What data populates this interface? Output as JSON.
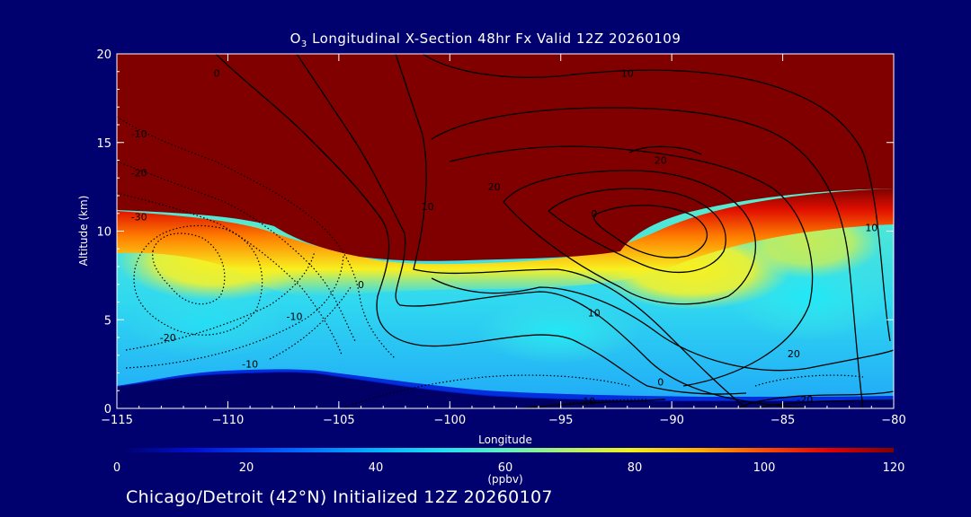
{
  "chart_data": {
    "type": "heatmap",
    "title_prefix": "O",
    "title_subscript": "3",
    "title_suffix": " Longitudinal X-Section 48hr  Fx Valid 12Z 20260109",
    "xlabel": "Longitude",
    "ylabel": "Altitude (km)",
    "xlim": [
      -115,
      -80
    ],
    "ylim": [
      0,
      20
    ],
    "x_ticks": [
      "−115",
      "−110",
      "−105",
      "−100",
      "−95",
      "−90",
      "−85",
      "−80"
    ],
    "y_ticks": [
      "0",
      "5",
      "10",
      "15",
      "20"
    ],
    "colorbar": {
      "min": 0,
      "max": 120,
      "ticks": [
        "0",
        "20",
        "40",
        "60",
        "80",
        "100",
        "120"
      ],
      "unit_label": "(ppbv)"
    },
    "contour_labels": [
      {
        "text": "0",
        "lon": -110.5,
        "alt": 18.9
      },
      {
        "text": "10",
        "lon": -92,
        "alt": 18.9
      },
      {
        "text": "-10",
        "lon": -114,
        "alt": 15.5
      },
      {
        "text": "-20",
        "lon": -114,
        "alt": 13.3
      },
      {
        "text": "-30",
        "lon": -114,
        "alt": 10.8
      },
      {
        "text": "20",
        "lon": -98,
        "alt": 12.5
      },
      {
        "text": "20",
        "lon": -90.5,
        "alt": 14
      },
      {
        "text": "10",
        "lon": -101,
        "alt": 11.4
      },
      {
        "text": "0",
        "lon": -93.5,
        "alt": 11
      },
      {
        "text": "10",
        "lon": -81,
        "alt": 10.2
      },
      {
        "text": "0",
        "lon": -104,
        "alt": 7
      },
      {
        "text": "-10",
        "lon": -107,
        "alt": 5.2
      },
      {
        "text": "-20",
        "lon": -112.7,
        "alt": 4
      },
      {
        "text": "-10",
        "lon": -109,
        "alt": 2.5
      },
      {
        "text": "10",
        "lon": -93.5,
        "alt": 5.4
      },
      {
        "text": "20",
        "lon": -84.5,
        "alt": 3.1
      },
      {
        "text": "0",
        "lon": -90.5,
        "alt": 1.5
      },
      {
        "text": "-10",
        "lon": -93.8,
        "alt": 0.4
      },
      {
        "text": "-20",
        "lon": -84,
        "alt": 0.5
      }
    ]
  },
  "footer": "Chicago/Detroit (42°N) Initialized 12Z 20260107"
}
